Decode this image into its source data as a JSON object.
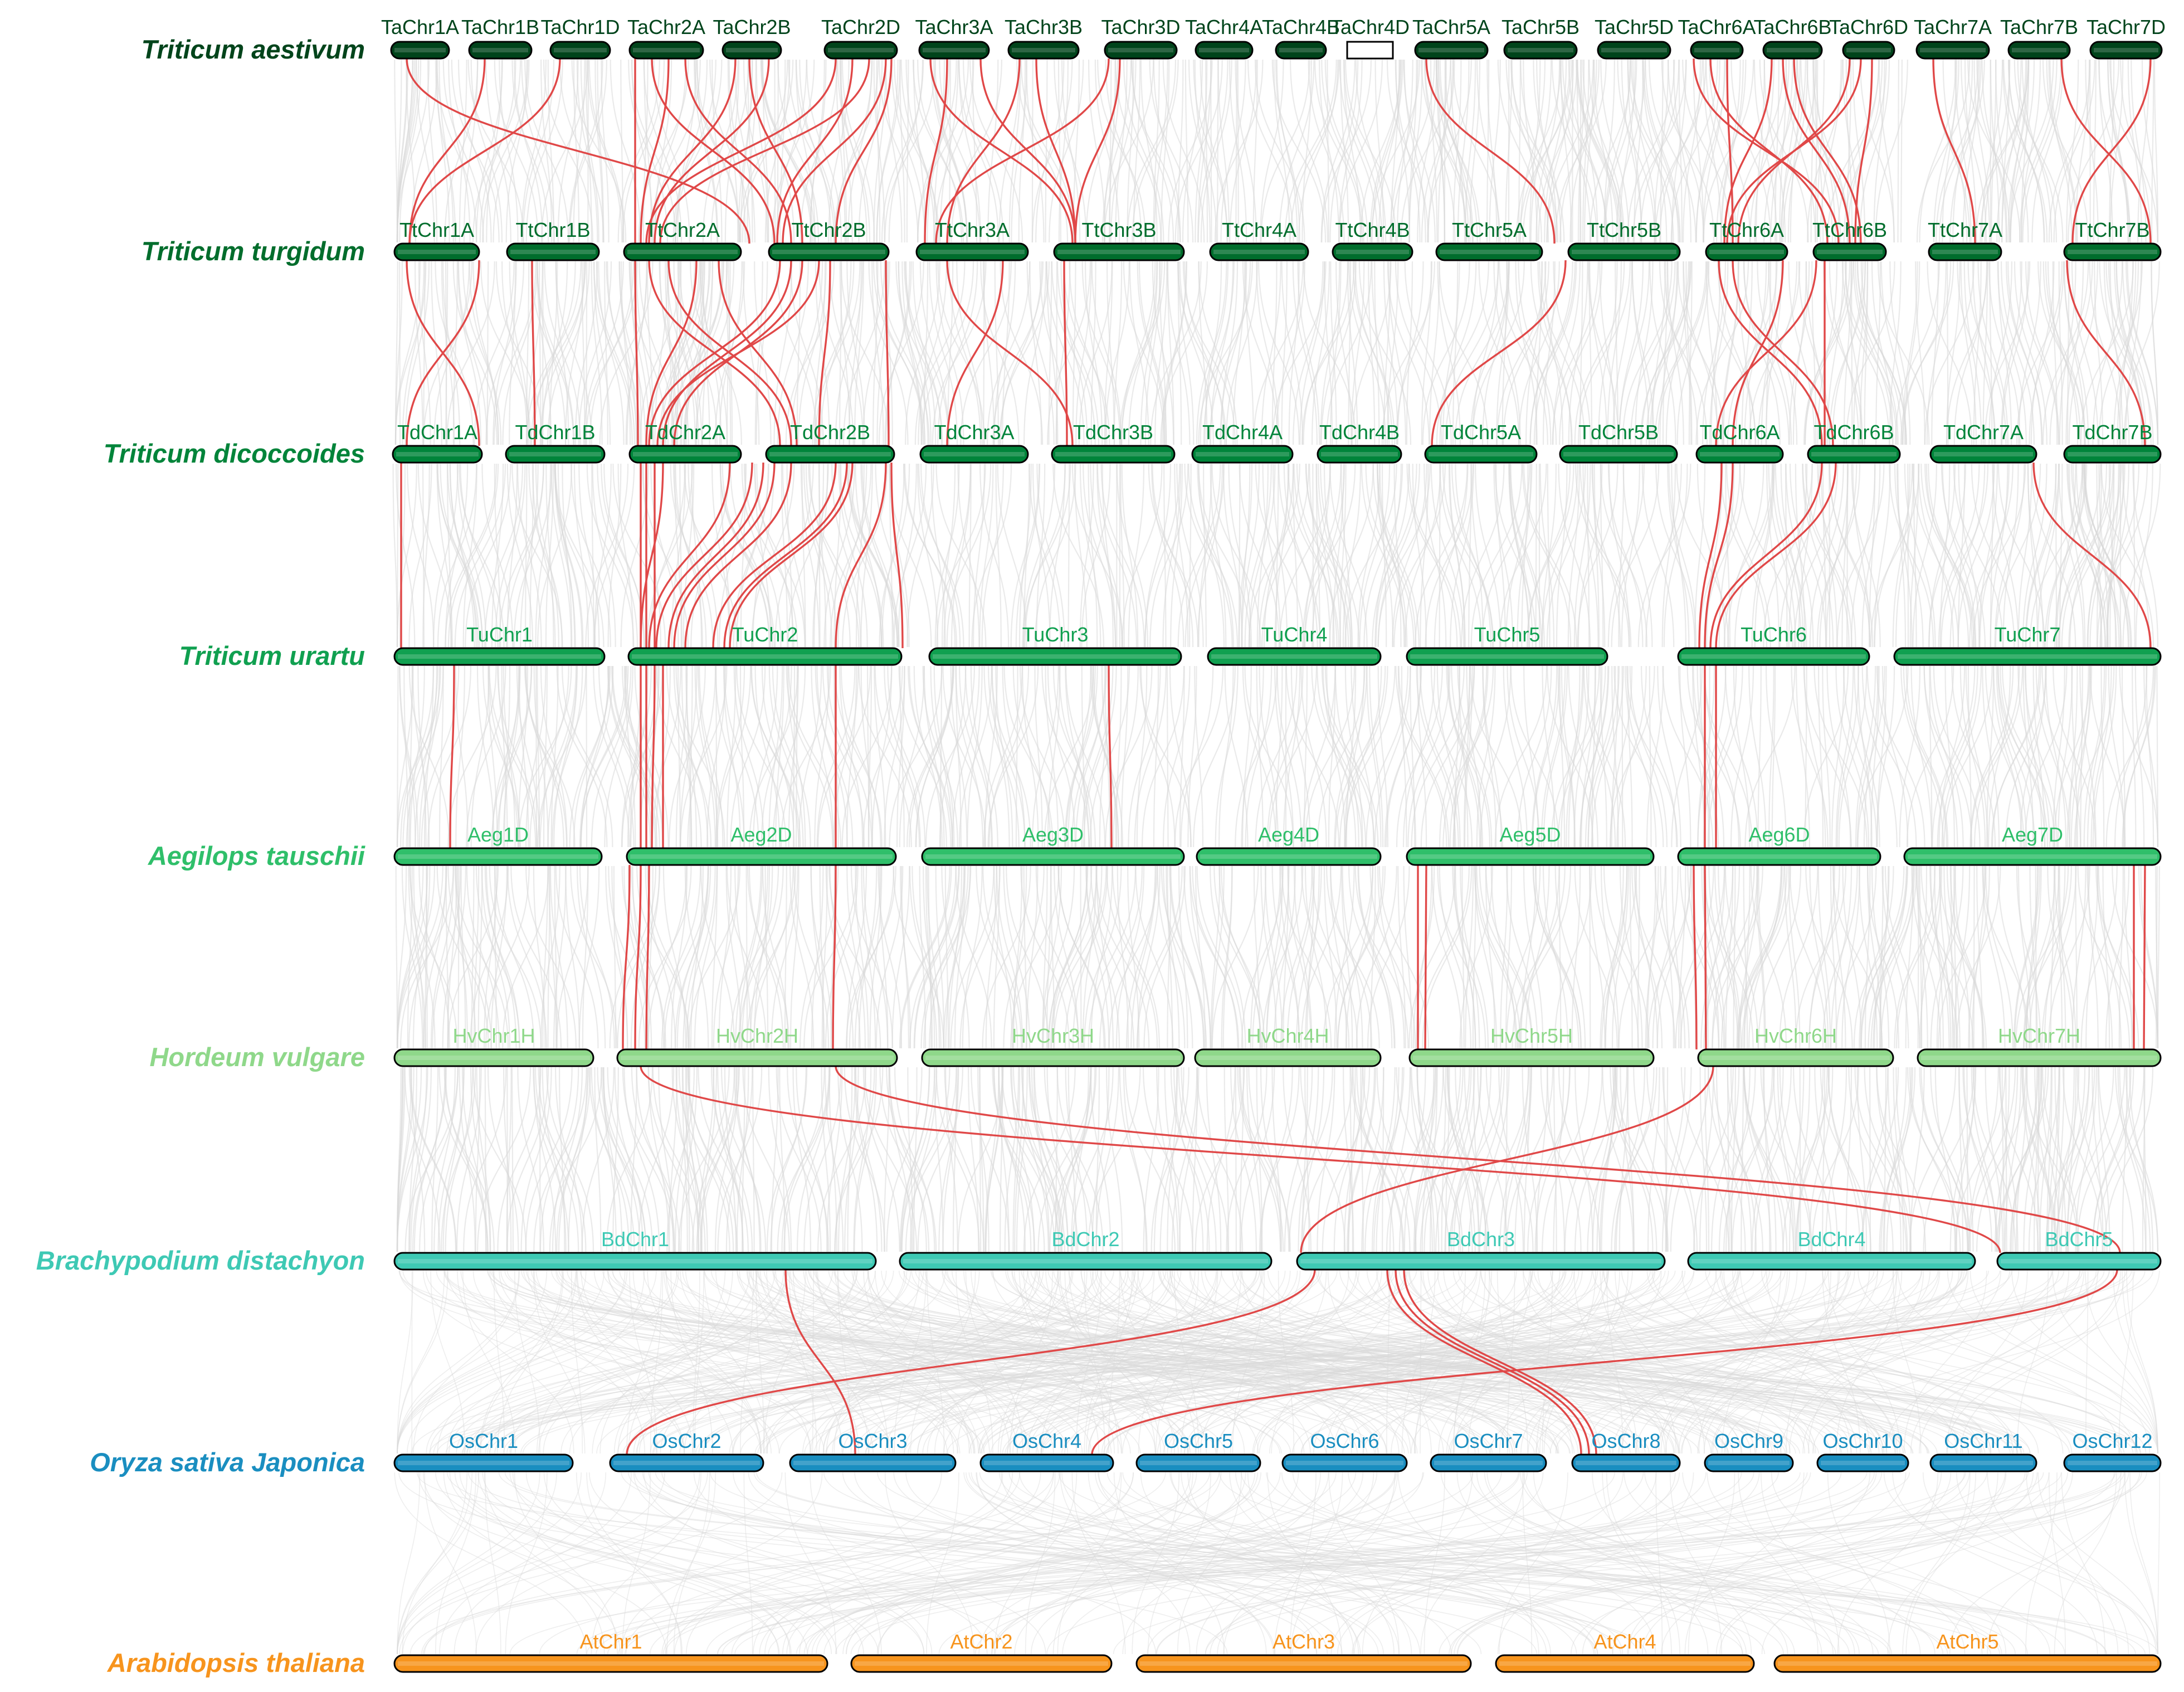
{
  "species": [
    {
      "key": "ta",
      "name": "Triticum aestivum",
      "color": "#00441b",
      "chromosomes": [
        "TaChr1A",
        "TaChr1B",
        "TaChr1D",
        "TaChr2A",
        "TaChr2B",
        "TaChr2D",
        "TaChr3A",
        "TaChr3B",
        "TaChr3D",
        "TaChr4A",
        "TaChr4B",
        "TaChr4D",
        "TaChr5A",
        "TaChr5B",
        "TaChr5D",
        "TaChr6A",
        "TaChr6B",
        "TaChr6D",
        "TaChr7A",
        "TaChr7B",
        "TaChr7D"
      ]
    },
    {
      "key": "tt",
      "name": "Triticum turgidum",
      "color": "#006d2c",
      "chromosomes": [
        "TtChr1A",
        "TtChr1B",
        "TtChr2A",
        "TtChr2B",
        "TtChr3A",
        "TtChr3B",
        "TtChr4A",
        "TtChr4B",
        "TtChr5A",
        "TtChr5B",
        "TtChr6A",
        "TtChr6B",
        "TtChr7A",
        "TtChr7B"
      ]
    },
    {
      "key": "td",
      "name": "Triticum dicoccoides",
      "color": "#00843a",
      "chromosomes": [
        "TdChr1A",
        "TdChr1B",
        "TdChr2A",
        "TdChr2B",
        "TdChr3A",
        "TdChr3B",
        "TdChr4A",
        "TdChr4B",
        "TdChr5A",
        "TdChr5B",
        "TdChr6A",
        "TdChr6B",
        "TdChr7A",
        "TdChr7B"
      ]
    },
    {
      "key": "tu",
      "name": "Triticum urartu",
      "color": "#10a050",
      "chromosomes": [
        "TuChr1",
        "TuChr2",
        "TuChr3",
        "TuChr4",
        "TuChr5",
        "TuChr6",
        "TuChr7"
      ]
    },
    {
      "key": "aeg",
      "name": "Aegilops tauschii",
      "color": "#2fbf6a",
      "chromosomes": [
        "Aeg1D",
        "Aeg2D",
        "Aeg3D",
        "Aeg4D",
        "Aeg5D",
        "Aeg6D",
        "Aeg7D"
      ]
    },
    {
      "key": "hv",
      "name": "Hordeum vulgare",
      "color": "#8fd88a",
      "chromosomes": [
        "HvChr1H",
        "HvChr2H",
        "HvChr3H",
        "HvChr4H",
        "HvChr5H",
        "HvChr6H",
        "HvChr7H"
      ]
    },
    {
      "key": "bd",
      "name": "Brachypodium distachyon",
      "color": "#3ec9b4",
      "chromosomes": [
        "BdChr1",
        "BdChr2",
        "BdChr3",
        "BdChr4",
        "BdChr5"
      ]
    },
    {
      "key": "os",
      "name": "Oryza sativa Japonica",
      "color": "#1a8ec0",
      "chromosomes": [
        "OsChr1",
        "OsChr2",
        "OsChr3",
        "OsChr4",
        "OsChr5",
        "OsChr6",
        "OsChr7",
        "OsChr8",
        "OsChr9",
        "OsChr10",
        "OsChr11",
        "OsChr12"
      ]
    },
    {
      "key": "at",
      "name": "Arabidopsis thaliana",
      "color": "#f7941d",
      "chromosomes": [
        "AtChr1",
        "AtChr2",
        "AtChr3",
        "AtChr4",
        "AtChr5"
      ]
    }
  ],
  "link_colors": {
    "background": "#d9d9d9",
    "highlight": "#e04848",
    "outline": "#000000"
  }
}
